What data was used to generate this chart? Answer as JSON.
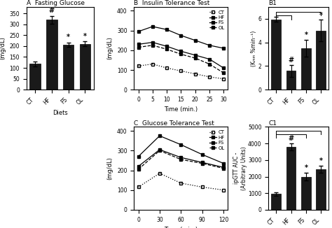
{
  "panel_A": {
    "title": "A  Fasting Glucose",
    "categories": [
      "CT",
      "HF",
      "FS",
      "OL"
    ],
    "values": [
      118,
      320,
      207,
      210
    ],
    "errors": [
      12,
      18,
      10,
      12
    ],
    "ylabel": "(mg/dL)",
    "xlabel": "Diets",
    "ylim": [
      0,
      380
    ],
    "yticks": [
      0,
      50,
      100,
      150,
      200,
      250,
      300,
      350
    ],
    "annotations": [
      "",
      "#",
      "*",
      "*"
    ],
    "bar_color": "#1a1a1a"
  },
  "panel_B": {
    "title": "B  Insulin Tolerance Test",
    "xlabel": "Time (min.)",
    "ylabel": "(mg/dL)",
    "ylim": [
      0,
      420
    ],
    "yticks": [
      0,
      100,
      200,
      300,
      400
    ],
    "time": [
      0,
      5,
      10,
      15,
      20,
      25,
      30
    ],
    "CT": [
      120,
      130,
      110,
      95,
      80,
      65,
      55
    ],
    "HF": [
      295,
      320,
      305,
      275,
      250,
      225,
      210
    ],
    "FS": [
      230,
      240,
      220,
      195,
      175,
      155,
      110
    ],
    "OL": [
      215,
      225,
      205,
      180,
      160,
      130,
      85
    ],
    "legend": [
      "CT",
      "HF",
      "FS",
      "OL"
    ],
    "styles": [
      "dotted",
      "solid",
      "solid",
      "dashed"
    ]
  },
  "panel_B1": {
    "title": "B1",
    "categories": [
      "CT",
      "HF",
      "FS",
      "OL"
    ],
    "values": [
      5.95,
      1.6,
      3.5,
      5.0
    ],
    "errors": [
      0.2,
      0.5,
      0.7,
      0.9
    ],
    "ylabel": "(Kₘₘ %min⁻¹)",
    "ylim": [
      0,
      7
    ],
    "yticks": [
      0,
      2,
      4,
      6
    ],
    "annotations": [
      "",
      "#",
      "*",
      "*"
    ],
    "bar_color": "#1a1a1a"
  },
  "panel_C": {
    "title": "C  Glucose Tolerance Test",
    "xlabel": "Time (min.)",
    "ylabel": "(mg/dL)",
    "ylim": [
      0,
      420
    ],
    "yticks": [
      0,
      100,
      200,
      300,
      400
    ],
    "time": [
      0,
      30,
      60,
      90,
      120
    ],
    "CT": [
      115,
      185,
      135,
      115,
      100
    ],
    "HF": [
      270,
      375,
      330,
      280,
      235
    ],
    "FS": [
      220,
      305,
      265,
      240,
      215
    ],
    "OL": [
      205,
      300,
      255,
      235,
      210
    ],
    "legend": [
      "CT",
      "HF",
      "FS",
      "OL"
    ],
    "styles": [
      "dotted",
      "solid",
      "solid",
      "dashed"
    ]
  },
  "panel_C1": {
    "title": "C1",
    "categories": [
      "CT",
      "HF",
      "FS",
      "OL"
    ],
    "values": [
      950,
      3800,
      2000,
      2450
    ],
    "errors": [
      120,
      200,
      250,
      200
    ],
    "ylabel": "ipGTT AUC -\n(Arbitrary Units)",
    "ylim": [
      0,
      5000
    ],
    "yticks": [
      0,
      1000,
      2000,
      3000,
      4000,
      5000
    ],
    "annotations": [
      "",
      "#",
      "*",
      "*"
    ],
    "bar_color": "#1a1a1a"
  }
}
